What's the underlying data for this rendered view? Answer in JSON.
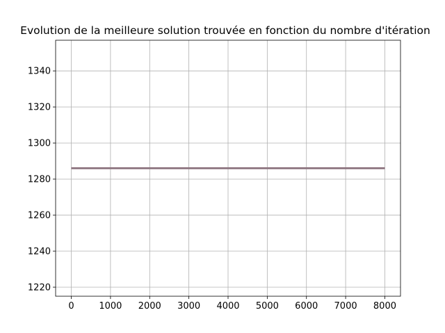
{
  "chart_data": {
    "type": "line",
    "title": "Evolution de la meilleure solution trouvée en fonction du nombre d'itération",
    "xlabel": "",
    "ylabel": "",
    "xlim": [
      -400,
      8400
    ],
    "ylim": [
      1215,
      1357
    ],
    "xticks": [
      0,
      1000,
      2000,
      3000,
      4000,
      5000,
      6000,
      7000,
      8000
    ],
    "xtick_labels": [
      "0",
      "1000",
      "2000",
      "3000",
      "4000",
      "5000",
      "6000",
      "7000",
      "8000"
    ],
    "yticks": [
      1220,
      1240,
      1260,
      1280,
      1300,
      1320,
      1340
    ],
    "ytick_labels": [
      "1220",
      "1240",
      "1260",
      "1280",
      "1300",
      "1320",
      "1340"
    ],
    "grid": true,
    "series": [
      {
        "color": "#1f77b4",
        "x": [
          0,
          8000
        ],
        "y": [
          1286,
          1286
        ]
      },
      {
        "color": "#ff7f0e",
        "x": [
          0,
          8000
        ],
        "y": [
          1286,
          1286
        ]
      },
      {
        "color": "#2ca02c",
        "x": [
          0,
          8000
        ],
        "y": [
          1286,
          1286
        ]
      },
      {
        "color": "#d62728",
        "x": [
          0,
          8000
        ],
        "y": [
          1286,
          1286
        ]
      },
      {
        "color": "#9467bd",
        "x": [
          0,
          8000
        ],
        "y": [
          1286,
          1286
        ]
      },
      {
        "color": "#8c564b",
        "x": [
          0,
          8000
        ],
        "y": [
          1286,
          1286
        ]
      },
      {
        "color": "#e377c2",
        "x": [
          0,
          8000
        ],
        "y": [
          1286,
          1286
        ]
      },
      {
        "color": "#7f7f7f",
        "x": [
          0,
          8000
        ],
        "y": [
          1286,
          1286
        ]
      }
    ]
  }
}
